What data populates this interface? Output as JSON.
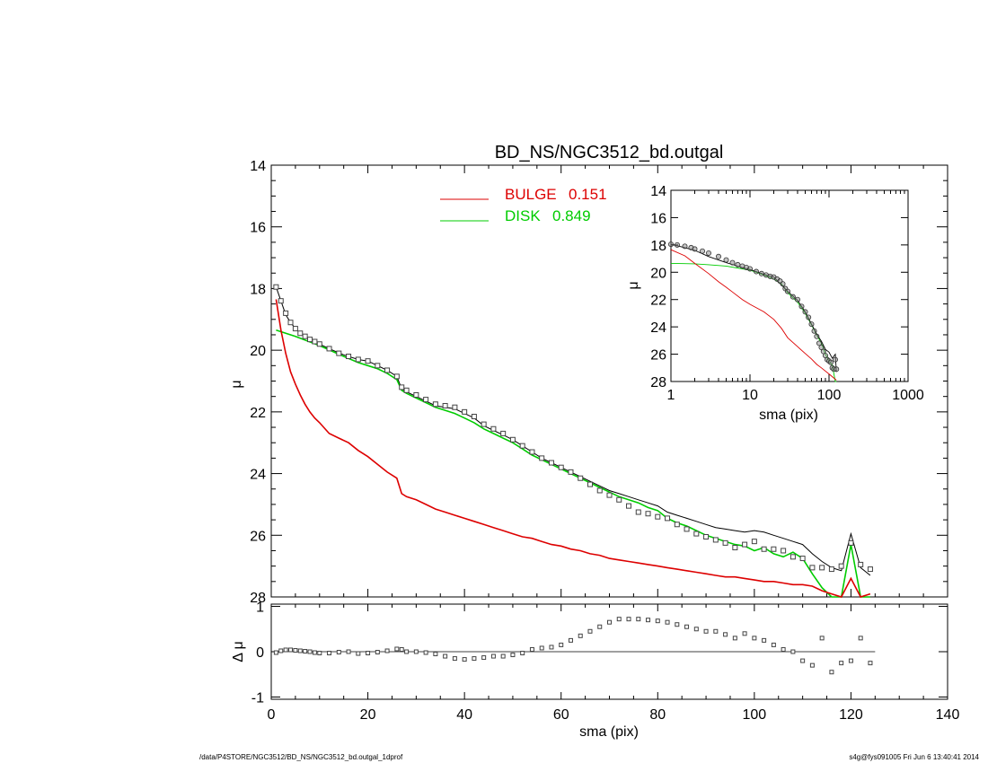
{
  "footer": {
    "left": "/data/P4STORE/NGC3512/BD_NS/NGC3512_bd.outgal_1dprof",
    "right": "s4g@fys091005  Fri Jun  6 13:40:41 2014"
  },
  "chart_data": [
    {
      "type": "line",
      "panel": "main",
      "title": "BD_NS/NGC3512_bd.outgal",
      "xlabel": "",
      "ylabel": "μ",
      "xlim": [
        0,
        140
      ],
      "ylim": [
        28,
        14
      ],
      "x_ticks": [
        "0",
        "20",
        "40",
        "60",
        "80",
        "100",
        "120",
        "140"
      ],
      "y_ticks": [
        "14",
        "16",
        "18",
        "20",
        "22",
        "24",
        "26",
        "28"
      ],
      "legend": [
        {
          "name": "BULGE",
          "value": "0.151",
          "color": "#dd0000"
        },
        {
          "name": "DISK",
          "value": "0.849",
          "color": "#00dd00"
        }
      ],
      "legend_placement": "top-center",
      "series": [
        {
          "name": "data",
          "style": "squares",
          "color": "#444444",
          "x": [
            1,
            2,
            3,
            4,
            5,
            6,
            7,
            8,
            9,
            10,
            12,
            14,
            16,
            18,
            20,
            22,
            24,
            26,
            27,
            28,
            30,
            32,
            34,
            36,
            38,
            40,
            42,
            44,
            46,
            48,
            50,
            52,
            54,
            56,
            58,
            60,
            62,
            64,
            66,
            68,
            70,
            72,
            74,
            76,
            78,
            80,
            82,
            84,
            86,
            88,
            90,
            92,
            94,
            96,
            98,
            100,
            102,
            104,
            106,
            108,
            110,
            112,
            114,
            116,
            118,
            120,
            122,
            124
          ],
          "y": [
            17.95,
            18.4,
            18.8,
            19.1,
            19.3,
            19.45,
            19.55,
            19.65,
            19.72,
            19.8,
            19.95,
            20.1,
            20.2,
            20.3,
            20.35,
            20.5,
            20.65,
            20.85,
            21.2,
            21.3,
            21.45,
            21.6,
            21.75,
            21.8,
            21.85,
            22.0,
            22.15,
            22.4,
            22.55,
            22.7,
            22.9,
            23.1,
            23.3,
            23.5,
            23.65,
            23.8,
            23.95,
            24.15,
            24.35,
            24.55,
            24.7,
            24.85,
            25.05,
            25.25,
            25.3,
            25.4,
            25.45,
            25.65,
            25.8,
            25.95,
            26.05,
            26.15,
            26.25,
            26.4,
            26.3,
            26.2,
            26.45,
            26.45,
            26.5,
            26.7,
            26.75,
            27.05,
            27.05,
            27.1,
            27.0,
            26.25,
            26.95,
            27.1
          ]
        },
        {
          "name": "total",
          "style": "line",
          "color": "#000000",
          "x": [
            1,
            2,
            3,
            4,
            5,
            6,
            8,
            10,
            12,
            15,
            18,
            20,
            22,
            24,
            26,
            27,
            28,
            30,
            32,
            34,
            36,
            38,
            40,
            42,
            44,
            46,
            48,
            50,
            52,
            54,
            56,
            58,
            60,
            62,
            64,
            66,
            68,
            70,
            72,
            74,
            76,
            78,
            80,
            82,
            84,
            86,
            88,
            90,
            92,
            94,
            96,
            98,
            100,
            102,
            104,
            106,
            108,
            110,
            112,
            114,
            116,
            118,
            120,
            122,
            124
          ],
          "y": [
            17.95,
            18.4,
            18.85,
            19.1,
            19.3,
            19.45,
            19.65,
            19.8,
            19.95,
            20.15,
            20.3,
            20.35,
            20.5,
            20.65,
            20.85,
            21.25,
            21.35,
            21.5,
            21.65,
            21.8,
            21.85,
            21.9,
            22.05,
            22.2,
            22.45,
            22.6,
            22.75,
            22.9,
            23.1,
            23.3,
            23.5,
            23.65,
            23.8,
            23.95,
            24.1,
            24.25,
            24.4,
            24.55,
            24.65,
            24.75,
            24.85,
            24.95,
            25.05,
            25.25,
            25.35,
            25.45,
            25.55,
            25.65,
            25.75,
            25.8,
            25.85,
            25.9,
            25.85,
            25.9,
            26.0,
            26.1,
            26.2,
            26.3,
            26.6,
            26.85,
            27.05,
            27.15,
            25.95,
            27.05,
            27.3
          ]
        },
        {
          "name": "DISK",
          "style": "line",
          "color": "#00cc00",
          "x": [
            1,
            5,
            10,
            15,
            18,
            20,
            22,
            24,
            26,
            27,
            28,
            30,
            32,
            34,
            36,
            38,
            40,
            42,
            44,
            46,
            48,
            50,
            52,
            54,
            56,
            58,
            60,
            62,
            64,
            66,
            68,
            70,
            72,
            74,
            76,
            78,
            80,
            82,
            84,
            86,
            88,
            90,
            92,
            94,
            96,
            98,
            100,
            102,
            104,
            106,
            108,
            110,
            112,
            114,
            116,
            118,
            120,
            122,
            124
          ],
          "y": [
            19.35,
            19.55,
            19.85,
            20.2,
            20.4,
            20.5,
            20.6,
            20.75,
            20.95,
            21.3,
            21.4,
            21.55,
            21.7,
            21.85,
            21.95,
            22.05,
            22.2,
            22.35,
            22.55,
            22.7,
            22.85,
            23.0,
            23.2,
            23.4,
            23.55,
            23.7,
            23.85,
            24.0,
            24.15,
            24.3,
            24.45,
            24.6,
            24.75,
            24.85,
            24.95,
            25.1,
            25.2,
            25.45,
            25.6,
            25.7,
            25.85,
            26.0,
            26.1,
            26.2,
            26.3,
            26.35,
            26.5,
            26.4,
            26.6,
            26.7,
            26.55,
            26.75,
            27.25,
            27.7,
            28.0,
            28.2,
            26.3,
            28.0,
            28.1
          ]
        },
        {
          "name": "BULGE",
          "style": "line",
          "color": "#dd0000",
          "x": [
            1,
            2,
            3,
            4,
            5,
            6,
            7,
            8,
            9,
            10,
            12,
            14,
            16,
            18,
            20,
            22,
            24,
            26,
            27,
            28,
            30,
            32,
            34,
            36,
            38,
            40,
            42,
            44,
            46,
            48,
            50,
            52,
            54,
            56,
            58,
            60,
            62,
            64,
            66,
            68,
            70,
            72,
            74,
            76,
            78,
            80,
            82,
            84,
            86,
            88,
            90,
            92,
            94,
            96,
            98,
            100,
            102,
            104,
            106,
            108,
            110,
            112,
            114,
            116,
            118,
            120,
            122,
            124
          ],
          "y": [
            18.35,
            19.35,
            20.1,
            20.7,
            21.1,
            21.45,
            21.75,
            22.0,
            22.2,
            22.35,
            22.7,
            22.85,
            23.0,
            23.25,
            23.45,
            23.7,
            23.95,
            24.15,
            24.65,
            24.75,
            24.85,
            25.0,
            25.15,
            25.25,
            25.35,
            25.45,
            25.55,
            25.65,
            25.75,
            25.85,
            25.95,
            26.05,
            26.1,
            26.2,
            26.3,
            26.35,
            26.45,
            26.5,
            26.6,
            26.65,
            26.75,
            26.8,
            26.85,
            26.9,
            26.95,
            27.0,
            27.05,
            27.1,
            27.15,
            27.2,
            27.25,
            27.3,
            27.35,
            27.35,
            27.4,
            27.45,
            27.5,
            27.5,
            27.55,
            27.6,
            27.6,
            27.65,
            27.8,
            27.9,
            28.0,
            27.4,
            28.0,
            27.9
          ]
        }
      ]
    },
    {
      "type": "scatter",
      "panel": "residual",
      "title": "",
      "xlabel": "sma (pix)",
      "ylabel": "Δ μ",
      "xlim": [
        0,
        140
      ],
      "ylim": [
        -1,
        1
      ],
      "x_ticks": [
        "0",
        "20",
        "40",
        "60",
        "80",
        "100",
        "120",
        "140"
      ],
      "y_ticks": [
        "-1",
        "0",
        "1"
      ],
      "zero_line": true,
      "series": [
        {
          "name": "residual",
          "style": "squares",
          "color": "#444444",
          "x": [
            1,
            2,
            3,
            4,
            5,
            6,
            7,
            8,
            9,
            10,
            12,
            14,
            16,
            18,
            20,
            22,
            24,
            26,
            27,
            28,
            30,
            32,
            34,
            36,
            38,
            40,
            42,
            44,
            46,
            48,
            50,
            52,
            54,
            56,
            58,
            60,
            62,
            64,
            66,
            68,
            70,
            72,
            74,
            76,
            78,
            80,
            82,
            84,
            86,
            88,
            90,
            92,
            94,
            96,
            98,
            100,
            102,
            104,
            106,
            108,
            110,
            112,
            114,
            116,
            118,
            120,
            122,
            124
          ],
          "y": [
            -0.02,
            0.02,
            0.04,
            0.04,
            0.03,
            0.02,
            0.01,
            0.0,
            -0.02,
            -0.03,
            -0.03,
            -0.01,
            0.0,
            -0.04,
            -0.03,
            -0.01,
            0.02,
            0.06,
            0.05,
            0.0,
            0.0,
            -0.02,
            -0.05,
            -0.1,
            -0.15,
            -0.17,
            -0.15,
            -0.13,
            -0.1,
            -0.1,
            -0.07,
            -0.03,
            0.05,
            0.08,
            0.1,
            0.15,
            0.25,
            0.35,
            0.45,
            0.55,
            0.65,
            0.72,
            0.72,
            0.72,
            0.7,
            0.68,
            0.65,
            0.6,
            0.55,
            0.5,
            0.45,
            0.45,
            0.38,
            0.3,
            0.4,
            0.3,
            0.25,
            0.15,
            0.05,
            0.0,
            -0.2,
            -0.3,
            0.3,
            -0.45,
            -0.25,
            -0.2,
            0.3,
            -0.25
          ]
        }
      ]
    },
    {
      "type": "line",
      "panel": "inset",
      "title": "",
      "xlabel": "sma (pix)",
      "ylabel": "μ",
      "xscale": "log",
      "xlim": [
        1,
        1000
      ],
      "ylim": [
        28,
        14
      ],
      "x_ticks": [
        "1",
        "10",
        "100",
        "1000"
      ],
      "y_ticks": [
        "14",
        "16",
        "18",
        "20",
        "22",
        "24",
        "26",
        "28"
      ],
      "series": [
        {
          "name": "data",
          "style": "circles",
          "color": "#444444",
          "x": [
            1,
            1.2,
            1.5,
            1.8,
            2,
            2.5,
            3,
            4,
            5,
            6,
            7,
            8,
            9,
            10,
            12,
            14,
            16,
            18,
            20,
            22,
            24,
            26,
            28,
            30,
            35,
            40,
            45,
            50,
            55,
            60,
            65,
            70,
            75,
            80,
            85,
            90,
            95,
            100,
            105,
            110,
            115,
            120,
            124
          ],
          "y": [
            17.95,
            18.0,
            18.1,
            18.2,
            18.3,
            18.45,
            18.6,
            18.85,
            19.1,
            19.3,
            19.45,
            19.55,
            19.65,
            19.75,
            19.95,
            20.1,
            20.2,
            20.3,
            20.35,
            20.5,
            20.65,
            20.85,
            21.2,
            21.4,
            21.8,
            22.0,
            22.5,
            22.9,
            23.3,
            23.8,
            24.3,
            24.7,
            25.2,
            25.5,
            25.8,
            26.1,
            26.4,
            26.5,
            26.6,
            27.0,
            27.1,
            26.4,
            27.1
          ]
        },
        {
          "name": "DISK",
          "style": "line",
          "color": "#00cc00",
          "x": [
            1,
            2,
            3,
            5,
            8,
            10,
            15,
            20,
            25,
            30,
            40,
            50,
            60,
            70,
            80,
            90,
            100,
            110,
            120,
            124
          ],
          "y": [
            19.35,
            19.38,
            19.45,
            19.55,
            19.75,
            19.85,
            20.2,
            20.5,
            20.85,
            21.5,
            22.2,
            23.0,
            23.85,
            24.6,
            25.2,
            26.0,
            26.5,
            26.8,
            28.0,
            28.1
          ]
        },
        {
          "name": "BULGE",
          "style": "line",
          "color": "#dd0000",
          "x": [
            1,
            1.5,
            2,
            3,
            4,
            5,
            6,
            8,
            10,
            15,
            20,
            25,
            30,
            40,
            50,
            60,
            70,
            80,
            100,
            124
          ],
          "y": [
            18.35,
            18.8,
            19.35,
            20.1,
            20.7,
            21.1,
            21.45,
            22.0,
            22.35,
            22.9,
            23.45,
            24.1,
            24.8,
            25.45,
            25.95,
            26.35,
            26.75,
            27.0,
            27.45,
            27.9
          ]
        },
        {
          "name": "total",
          "style": "line",
          "color": "#000000",
          "x": [
            1,
            1.5,
            2,
            3,
            5,
            8,
            10,
            15,
            20,
            30,
            40,
            50,
            60,
            70,
            80,
            90,
            100,
            110,
            120,
            124
          ],
          "y": [
            17.95,
            18.2,
            18.4,
            18.85,
            19.3,
            19.65,
            19.8,
            20.15,
            20.35,
            21.4,
            22.05,
            22.9,
            23.8,
            24.55,
            25.05,
            25.65,
            25.85,
            26.3,
            26.0,
            27.3
          ]
        }
      ]
    }
  ]
}
